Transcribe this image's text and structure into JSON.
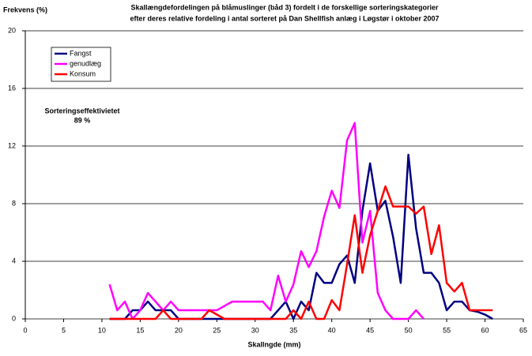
{
  "chart_data": {
    "type": "line",
    "title": "Skallængdefordelingen på blåmuslinger (båd 3) fordelt i de forskellige sorteringskategorier",
    "subtitle": "efter deres relative fordeling i antal sorteret på Dan Shellfish anlæg  i Løgstør i oktober 2007",
    "y_label": "Frekvens (%)",
    "x_label": "Skallngde (mm)",
    "annotations": [
      "Sorteringseffektivietet",
      "89 %"
    ],
    "x": [
      11,
      12,
      13,
      14,
      15,
      16,
      17,
      18,
      19,
      20,
      21,
      22,
      23,
      24,
      25,
      26,
      27,
      28,
      29,
      30,
      31,
      32,
      33,
      34,
      35,
      36,
      37,
      38,
      39,
      40,
      41,
      42,
      43,
      44,
      45,
      46,
      47,
      48,
      49,
      50,
      51,
      52,
      53,
      54,
      55,
      56,
      57,
      58,
      59,
      60,
      61
    ],
    "series": [
      {
        "name": "Fangst",
        "color": "#000080",
        "values": [
          0,
          0,
          0,
          0.6,
          0.6,
          1.2,
          0.6,
          0.6,
          0.6,
          0,
          0,
          0,
          0,
          0,
          0,
          0,
          0,
          0,
          0,
          0,
          0,
          0,
          0.6,
          1.2,
          0,
          1.2,
          0.6,
          3.2,
          2.5,
          2.5,
          3.8,
          4.4,
          2.5,
          7.5,
          10.8,
          7.5,
          8.2,
          5.7,
          2.5,
          11.4,
          6.3,
          3.2,
          3.2,
          2.5,
          0.6,
          1.2,
          1.2,
          0.6,
          0.5,
          0.3,
          0
        ]
      },
      {
        "name": "genudlæg",
        "color": "#ff00ff",
        "values": [
          2.4,
          0.6,
          1.2,
          0,
          0.6,
          1.8,
          1.2,
          0.6,
          1.2,
          0.6,
          0.6,
          0.6,
          0.6,
          0.6,
          0.6,
          0.9,
          1.2,
          1.2,
          1.2,
          1.2,
          1.2,
          0.6,
          3.0,
          1.2,
          2.4,
          4.7,
          3.6,
          4.7,
          7.1,
          8.9,
          7.7,
          12.4,
          13.6,
          5.3,
          7.5,
          1.8,
          0.6,
          0,
          0,
          0,
          0.6,
          0,
          null,
          null,
          null,
          null,
          null,
          null,
          null,
          null,
          null
        ]
      },
      {
        "name": "Konsum",
        "color": "#ff0000",
        "values": [
          0,
          0,
          0,
          0,
          0,
          0,
          0,
          0.6,
          0,
          0,
          0,
          0,
          0,
          0.6,
          0.3,
          0,
          0,
          0,
          0,
          0,
          0,
          0,
          0,
          0,
          0.6,
          0,
          1.2,
          0,
          0,
          1.3,
          0.6,
          3.8,
          7.2,
          3.2,
          5.8,
          7.5,
          9.2,
          7.8,
          7.8,
          7.8,
          7.3,
          7.8,
          4.5,
          6.5,
          2.5,
          1.9,
          2.5,
          0.6,
          0.6,
          0.6,
          0.6
        ]
      }
    ],
    "xlim": [
      0,
      65
    ],
    "xticks": [
      0,
      5,
      10,
      15,
      20,
      25,
      30,
      35,
      40,
      45,
      50,
      55,
      60,
      65
    ],
    "ylim": [
      0,
      20
    ],
    "yticks": [
      0,
      4,
      8,
      12,
      16,
      20
    ],
    "grid": true,
    "legend": "upper left"
  }
}
